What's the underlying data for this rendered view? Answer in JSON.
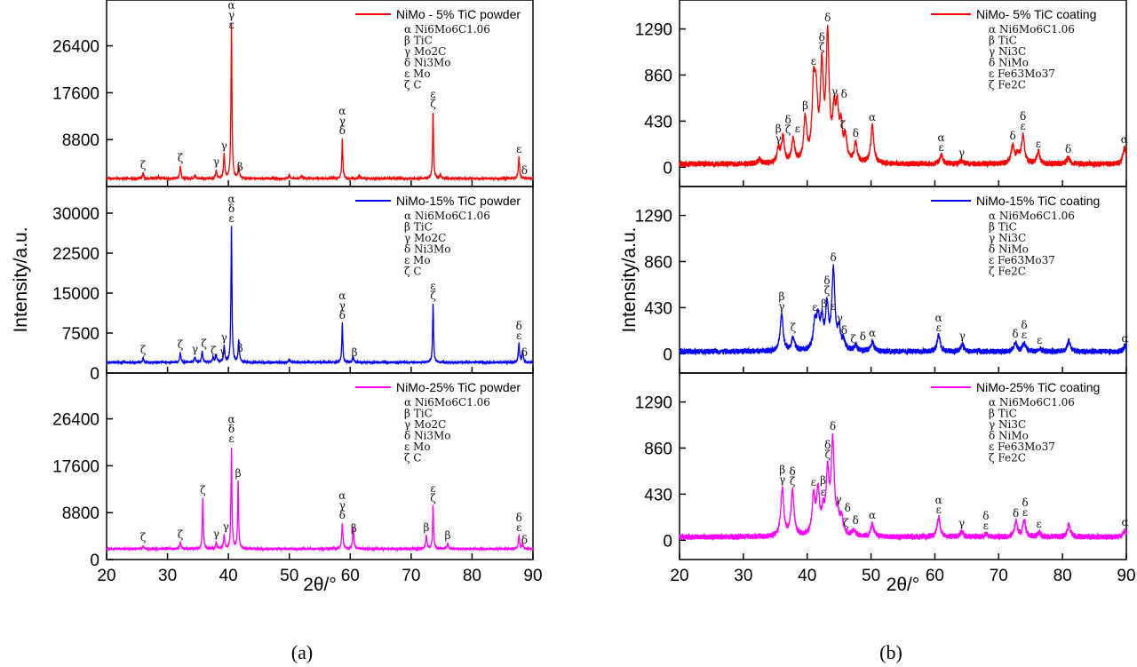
{
  "chart_data": [
    {
      "type": "line",
      "panel": "a",
      "xlabel": "2θ/°",
      "ylabel": "Intensity/a.u.",
      "caption": "(a)",
      "xlim": [
        20,
        90
      ],
      "xticks": [
        20,
        30,
        40,
        50,
        60,
        70,
        80,
        90
      ],
      "grid": false,
      "phases": [
        "α Ni6Mo6C1.06",
        "β TiC",
        "γ Mo2C",
        "δ Ni3Mo",
        "ε Mo",
        "ζ C"
      ],
      "series": [
        {
          "name": "NiMo - 5% TiC powder",
          "color": "#ff0000",
          "ylim": [
            0,
            35000
          ],
          "yticks": [
            8800,
            17600,
            26400
          ],
          "baseline": 1500,
          "peaks": [
            [
              26.0,
              1000
            ],
            [
              28.5,
              400
            ],
            [
              32.1,
              2300
            ],
            [
              34.5,
              500
            ],
            [
              38.0,
              1500
            ],
            [
              39.3,
              4500
            ],
            [
              40.5,
              29000
            ],
            [
              41.7,
              2200
            ],
            [
              50.0,
              700
            ],
            [
              52.0,
              500
            ],
            [
              58.7,
              7500
            ],
            [
              61.5,
              500
            ],
            [
              73.6,
              12500
            ],
            [
              74.8,
              800
            ],
            [
              87.7,
              4000
            ]
          ],
          "annotations": [
            [
              26.0,
              "ζ"
            ],
            [
              32.1,
              "ζ"
            ],
            [
              38.0,
              "γ"
            ],
            [
              39.3,
              "γ"
            ],
            [
              40.5,
              "αγε"
            ],
            [
              41.9,
              "β"
            ],
            [
              58.7,
              "αγδ"
            ],
            [
              73.6,
              "εζ"
            ],
            [
              87.7,
              "ε"
            ],
            [
              88.6,
              "δ"
            ]
          ]
        },
        {
          "name": "NiMo-15% TiC powder",
          "color": "#0000ff",
          "ylim": [
            0,
            35000
          ],
          "yticks": [
            0,
            7500,
            15000,
            22500,
            30000
          ],
          "baseline": 2000,
          "peaks": [
            [
              26.0,
              800
            ],
            [
              32.1,
              1800
            ],
            [
              34.5,
              1000
            ],
            [
              35.7,
              2000
            ],
            [
              37.5,
              1000
            ],
            [
              38.0,
              1500
            ],
            [
              39.3,
              3000
            ],
            [
              40.5,
              25500
            ],
            [
              41.7,
              4000
            ],
            [
              50.0,
              600
            ],
            [
              58.7,
              7300
            ],
            [
              60.5,
              1000
            ],
            [
              73.6,
              11000
            ],
            [
              87.7,
              3500
            ],
            [
              88.3,
              2000
            ]
          ],
          "annotations": [
            [
              26.0,
              "ζ"
            ],
            [
              32.1,
              "ζ"
            ],
            [
              34.5,
              "γ"
            ],
            [
              35.7,
              "ζ"
            ],
            [
              37.4,
              "ζ"
            ],
            [
              38.2,
              "γ"
            ],
            [
              39.3,
              "γ"
            ],
            [
              40.5,
              "αδε"
            ],
            [
              41.9,
              "β"
            ],
            [
              58.7,
              "αγδ"
            ],
            [
              60.7,
              "β"
            ],
            [
              73.6,
              "εζ"
            ],
            [
              87.7,
              "δε"
            ],
            [
              88.6,
              "δ"
            ]
          ]
        },
        {
          "name": "NiMo-25% TiC powder",
          "color": "#ff00ff",
          "ylim": [
            0,
            35000
          ],
          "yticks": [
            0,
            8800,
            17600,
            26400
          ],
          "baseline": 2000,
          "peaks": [
            [
              26.0,
              600
            ],
            [
              32.1,
              1200
            ],
            [
              35.8,
              9500
            ],
            [
              38.0,
              1200
            ],
            [
              39.3,
              2500
            ],
            [
              40.5,
              19000
            ],
            [
              41.6,
              12500
            ],
            [
              58.7,
              4800
            ],
            [
              60.5,
              4000
            ],
            [
              72.5,
              2500
            ],
            [
              73.6,
              8000
            ],
            [
              76.0,
              1000
            ],
            [
              87.7,
              2500
            ],
            [
              88.3,
              1000
            ]
          ],
          "annotations": [
            [
              26.0,
              "ζ"
            ],
            [
              32.1,
              "ζ"
            ],
            [
              35.8,
              "ζ"
            ],
            [
              38.0,
              "γ"
            ],
            [
              39.3,
              "γ"
            ],
            [
              40.5,
              "αδε"
            ],
            [
              41.6,
              "β"
            ],
            [
              58.7,
              "αγδ"
            ],
            [
              60.6,
              "β"
            ],
            [
              72.5,
              "β"
            ],
            [
              73.6,
              "εζ"
            ],
            [
              76.0,
              "β"
            ],
            [
              87.7,
              "δε"
            ],
            [
              88.6,
              "δ"
            ]
          ]
        }
      ]
    },
    {
      "type": "line",
      "panel": "b",
      "xlabel": "2θ/°",
      "ylabel": "Intensity/a.u.",
      "caption": "(b)",
      "xlim": [
        20,
        90
      ],
      "xticks": [
        20,
        30,
        40,
        50,
        60,
        70,
        80,
        90
      ],
      "grid": false,
      "phases": [
        "α Ni6Mo6C1.06",
        "β TiC",
        "γ Ni3C",
        "δ NiMo",
        "ε Fe63Mo37",
        "ζ Fe2C"
      ],
      "series": [
        {
          "name": "NiMo- 5% TiC coating",
          "color": "#ff0000",
          "ylim": [
            -180,
            1560
          ],
          "yticks": [
            0,
            430,
            860,
            1290
          ],
          "baseline": 30,
          "peaks": [
            [
              32.5,
              40
            ],
            [
              35.5,
              120
            ],
            [
              36.2,
              240
            ],
            [
              37.8,
              220
            ],
            [
              39.7,
              400
            ],
            [
              41.0,
              630
            ],
            [
              41.4,
              520
            ],
            [
              42.3,
              820
            ],
            [
              43.2,
              1140
            ],
            [
              44.2,
              380
            ],
            [
              44.7,
              420
            ],
            [
              45.3,
              300
            ],
            [
              46.0,
              200
            ],
            [
              47.6,
              180
            ],
            [
              50.2,
              350
            ],
            [
              61.0,
              80
            ],
            [
              64.2,
              30
            ],
            [
              72.2,
              170
            ],
            [
              73.0,
              80
            ],
            [
              73.8,
              260
            ],
            [
              76.2,
              110
            ],
            [
              80.9,
              60
            ],
            [
              89.7,
              150
            ]
          ],
          "annotations": [
            [
              35.5,
              "βγ"
            ],
            [
              36.3,
              "δζ"
            ],
            [
              37.8,
              "ε"
            ],
            [
              39.7,
              "β"
            ],
            [
              41.0,
              "ε"
            ],
            [
              42.3,
              "δζ"
            ],
            [
              43.2,
              "δ"
            ],
            [
              44.3,
              "γ"
            ],
            [
              44.8,
              "δ"
            ],
            [
              45.6,
              "ζ"
            ],
            [
              47.6,
              "δ"
            ],
            [
              50.2,
              "α"
            ],
            [
              61.0,
              "αε"
            ],
            [
              64.2,
              "γ"
            ],
            [
              72.2,
              "δ"
            ],
            [
              73.8,
              "δε"
            ],
            [
              76.2,
              "ε"
            ],
            [
              80.9,
              "δ"
            ],
            [
              89.7,
              "α"
            ]
          ]
        },
        {
          "name": "NiMo-15% TiC coating",
          "color": "#0000ff",
          "ylim": [
            -180,
            1560
          ],
          "yticks": [
            0,
            430,
            860,
            1290
          ],
          "baseline": 20,
          "peaks": [
            [
              36.0,
              340
            ],
            [
              37.8,
              130
            ],
            [
              41.2,
              240
            ],
            [
              41.7,
              270
            ],
            [
              42.3,
              250
            ],
            [
              43.1,
              390
            ],
            [
              44.1,
              740
            ],
            [
              45.0,
              180
            ],
            [
              45.7,
              80
            ],
            [
              47.6,
              50
            ],
            [
              50.2,
              90
            ],
            [
              60.6,
              150
            ],
            [
              64.3,
              70
            ],
            [
              72.6,
              90
            ],
            [
              74.0,
              80
            ],
            [
              76.4,
              30
            ],
            [
              81.0,
              100
            ],
            [
              89.8,
              50
            ]
          ],
          "annotations": [
            [
              36.0,
              "βγ"
            ],
            [
              37.8,
              "ζ"
            ],
            [
              41.2,
              "ε"
            ],
            [
              41.8,
              "β"
            ],
            [
              42.4,
              "ε"
            ],
            [
              43.1,
              "δζ"
            ],
            [
              44.1,
              "δ"
            ],
            [
              45.1,
              "γ"
            ],
            [
              45.8,
              "δ"
            ],
            [
              46.4,
              "ζ"
            ],
            [
              47.6,
              "δ"
            ],
            [
              50.2,
              "α"
            ],
            [
              60.6,
              "αε"
            ],
            [
              64.3,
              "γ"
            ],
            [
              72.6,
              "δ"
            ],
            [
              74.0,
              "δε"
            ],
            [
              76.4,
              "ε"
            ],
            [
              89.8,
              "α"
            ]
          ]
        },
        {
          "name": "NiMo-25% TiC coating",
          "color": "#ff00ff",
          "ylim": [
            -180,
            1560
          ],
          "yticks": [
            0,
            430,
            860,
            1290
          ],
          "baseline": 30,
          "peaks": [
            [
              36.1,
              440
            ],
            [
              37.7,
              420
            ],
            [
              41.0,
              350
            ],
            [
              41.7,
              390
            ],
            [
              42.5,
              180
            ],
            [
              43.2,
              550
            ],
            [
              44.0,
              860
            ],
            [
              44.8,
              160
            ],
            [
              45.4,
              150
            ],
            [
              47.3,
              60
            ],
            [
              50.2,
              120
            ],
            [
              60.6,
              180
            ],
            [
              64.2,
              50
            ],
            [
              68.0,
              30
            ],
            [
              72.7,
              140
            ],
            [
              74.0,
              150
            ],
            [
              76.3,
              40
            ],
            [
              81.0,
              120
            ],
            [
              89.8,
              60
            ]
          ],
          "annotations": [
            [
              36.1,
              "βγ"
            ],
            [
              37.7,
              "δζ"
            ],
            [
              41.0,
              "ε"
            ],
            [
              41.8,
              "β"
            ],
            [
              42.5,
              "ε"
            ],
            [
              43.2,
              "δζ"
            ],
            [
              44.0,
              "δ"
            ],
            [
              44.9,
              "γ"
            ],
            [
              45.5,
              "δ"
            ],
            [
              46.1,
              "ζ"
            ],
            [
              47.3,
              "δ"
            ],
            [
              50.2,
              "α"
            ],
            [
              60.6,
              "αε"
            ],
            [
              64.2,
              "γ"
            ],
            [
              68.0,
              "δε"
            ],
            [
              72.7,
              "δ"
            ],
            [
              74.0,
              "δε"
            ],
            [
              76.3,
              "ε"
            ],
            [
              89.8,
              "α"
            ]
          ]
        }
      ]
    }
  ]
}
